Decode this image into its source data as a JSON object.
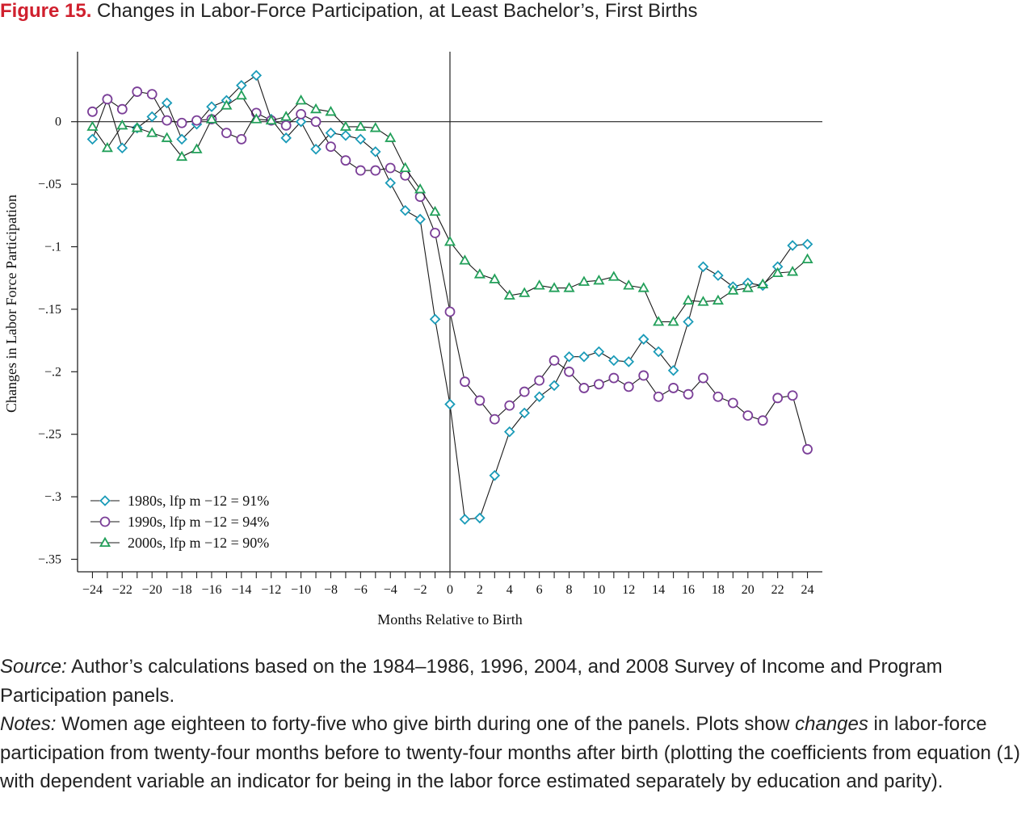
{
  "figure": {
    "label": "Figure 15.",
    "title": "Changes in Labor-Force Participation, at Least Bachelor’s, First Births"
  },
  "colors": {
    "s1980": "#1a9bb8",
    "s1990": "#7b3f98",
    "s2000": "#22a05a",
    "line": "#222222"
  },
  "chart_data": {
    "type": "line",
    "xlabel": "Months Relative to Birth",
    "ylabel": "Changes in Labor Force Participation",
    "xlim": [
      -25,
      25
    ],
    "ylim": [
      -0.36,
      0.056
    ],
    "x_ticks": [
      -24,
      -22,
      -20,
      -18,
      -16,
      -14,
      -12,
      -10,
      -8,
      -6,
      -4,
      -2,
      0,
      2,
      4,
      6,
      8,
      10,
      12,
      14,
      16,
      18,
      20,
      22,
      24
    ],
    "y_ticks": [
      0,
      -0.05,
      -0.1,
      -0.15,
      -0.2,
      -0.25,
      -0.3,
      -0.35
    ],
    "y_tick_labels": [
      "0",
      "−.05",
      "−.1",
      "−.15",
      "−.2",
      "−.25",
      "−.3",
      "−.35"
    ],
    "x_tick_labels": [
      "−24",
      "−22",
      "−20",
      "−18",
      "−16",
      "−14",
      "−12",
      "−10",
      "−8",
      "−6",
      "−4",
      "−2",
      "0",
      "2",
      "4",
      "6",
      "8",
      "10",
      "12",
      "14",
      "16",
      "18",
      "20",
      "22",
      "24"
    ],
    "reference_lines": {
      "x": 0,
      "y": 0
    },
    "legend_position": "bottom-left",
    "x": [
      -24,
      -23,
      -22,
      -21,
      -20,
      -19,
      -18,
      -17,
      -16,
      -15,
      -14,
      -13,
      -12,
      -11,
      -10,
      -9,
      -8,
      -7,
      -6,
      -5,
      -4,
      -3,
      -2,
      -1,
      0,
      1,
      2,
      3,
      4,
      5,
      6,
      7,
      8,
      9,
      10,
      11,
      12,
      13,
      14,
      15,
      16,
      17,
      18,
      19,
      20,
      21,
      22,
      23,
      24
    ],
    "series": [
      {
        "name": "1980s, lfp m −12 = 91%",
        "marker": "diamond",
        "values": [
          -0.014,
          0.018,
          -0.021,
          -0.005,
          0.004,
          0.015,
          -0.014,
          -0.002,
          0.012,
          0.017,
          0.029,
          0.037,
          0.002,
          -0.013,
          0.0,
          -0.022,
          -0.009,
          -0.011,
          -0.014,
          -0.024,
          -0.049,
          -0.071,
          -0.078,
          -0.158,
          -0.226,
          -0.318,
          -0.317,
          -0.283,
          -0.248,
          -0.233,
          -0.22,
          -0.211,
          -0.188,
          -0.188,
          -0.184,
          -0.191,
          -0.192,
          -0.174,
          -0.184,
          -0.199,
          -0.16,
          -0.116,
          -0.123,
          -0.132,
          -0.129,
          -0.131,
          -0.116,
          -0.099,
          -0.098
        ]
      },
      {
        "name": "1990s, lfp m −12 = 94%",
        "marker": "circle",
        "values": [
          0.008,
          0.018,
          0.01,
          0.024,
          0.022,
          0.001,
          -0.001,
          0.001,
          0.002,
          -0.009,
          -0.014,
          0.007,
          0.001,
          -0.003,
          0.006,
          0.0,
          -0.02,
          -0.031,
          -0.039,
          -0.039,
          -0.037,
          -0.043,
          -0.06,
          -0.089,
          -0.152,
          -0.208,
          -0.223,
          -0.238,
          -0.227,
          -0.216,
          -0.207,
          -0.191,
          -0.2,
          -0.213,
          -0.21,
          -0.205,
          -0.212,
          -0.203,
          -0.22,
          -0.213,
          -0.218,
          -0.205,
          -0.22,
          -0.225,
          -0.235,
          -0.239,
          -0.221,
          -0.219,
          -0.262
        ]
      },
      {
        "name": "2000s, lfp m −12 = 90%",
        "marker": "triangle",
        "values": [
          -0.004,
          -0.021,
          -0.003,
          -0.005,
          -0.009,
          -0.013,
          -0.028,
          -0.022,
          0.002,
          0.013,
          0.021,
          0.002,
          0.001,
          0.004,
          0.017,
          0.01,
          0.008,
          -0.004,
          -0.004,
          -0.005,
          -0.013,
          -0.037,
          -0.054,
          -0.072,
          -0.096,
          -0.111,
          -0.122,
          -0.126,
          -0.139,
          -0.137,
          -0.131,
          -0.133,
          -0.133,
          -0.128,
          -0.127,
          -0.124,
          -0.131,
          -0.133,
          -0.16,
          -0.16,
          -0.143,
          -0.144,
          -0.143,
          -0.135,
          -0.133,
          -0.13,
          -0.121,
          -0.12,
          -0.11
        ]
      }
    ]
  },
  "source": {
    "lead": "Source:",
    "text": " Author’s calculations based on the 1984–1986, 1996, 2004, and 2008 Survey of Income and Program Participation panels."
  },
  "notes": {
    "lead": "Notes:",
    "text_a": " Women age eighteen to forty-five who give birth during one of the panels. Plots show ",
    "emph": "changes",
    "text_b": " in labor-force participation from twenty-four months before to twenty-four months after birth (plotting the coefficients from equation (1) with dependent variable an indicator for being in the labor force esti­mated separately by education and parity)."
  }
}
